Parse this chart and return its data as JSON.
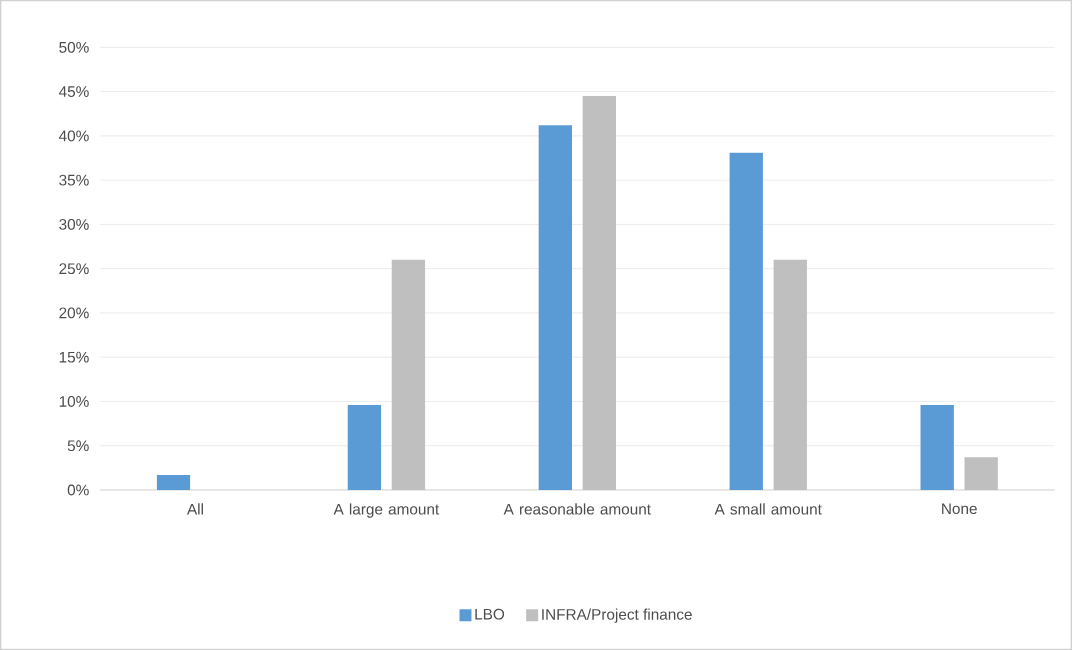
{
  "chart_data": {
    "type": "bar",
    "categories": [
      "All",
      "A large amount",
      "A reasonable amount",
      "A small amount",
      "None"
    ],
    "series": [
      {
        "name": "LBO",
        "color": "#5b9bd5",
        "values": [
          1.7,
          9.6,
          41.2,
          38.1,
          9.6
        ]
      },
      {
        "name": "INFRA/Project finance",
        "color": "#bfbfbf",
        "values": [
          0,
          26.0,
          44.5,
          26.0,
          3.7
        ]
      }
    ],
    "ylim": [
      0,
      50
    ],
    "yticks": [
      {
        "value": 0,
        "label": "0%"
      },
      {
        "value": 5,
        "label": "5%"
      },
      {
        "value": 10,
        "label": "10%"
      },
      {
        "value": 15,
        "label": "15%"
      },
      {
        "value": 20,
        "label": "20%"
      },
      {
        "value": 25,
        "label": "25%"
      },
      {
        "value": 30,
        "label": "30%"
      },
      {
        "value": 35,
        "label": "35%"
      },
      {
        "value": 40,
        "label": "40%"
      },
      {
        "value": 45,
        "label": "45%"
      },
      {
        "value": 50,
        "label": "50%"
      }
    ],
    "grid": "y",
    "legend": "bottom"
  }
}
